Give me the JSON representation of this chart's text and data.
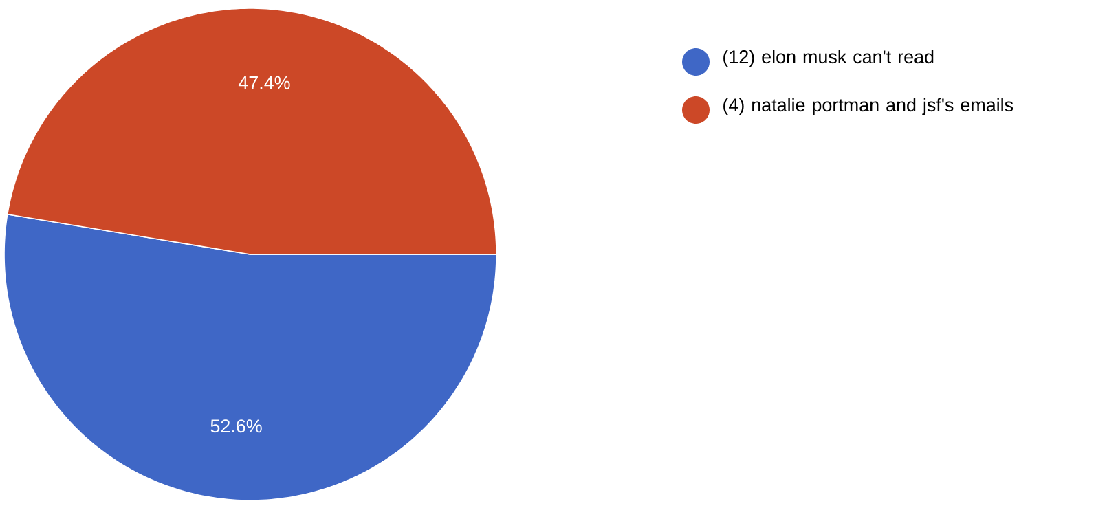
{
  "chart_data": {
    "type": "pie",
    "categories": [
      "(12) elon musk can't read",
      "(4) natalie portman and jsf's emails"
    ],
    "values": [
      52.6,
      47.4
    ],
    "colors": [
      "#3f67c6",
      "#cc4827"
    ],
    "value_labels": [
      "52.6%",
      "47.4%"
    ],
    "legend": "right"
  }
}
